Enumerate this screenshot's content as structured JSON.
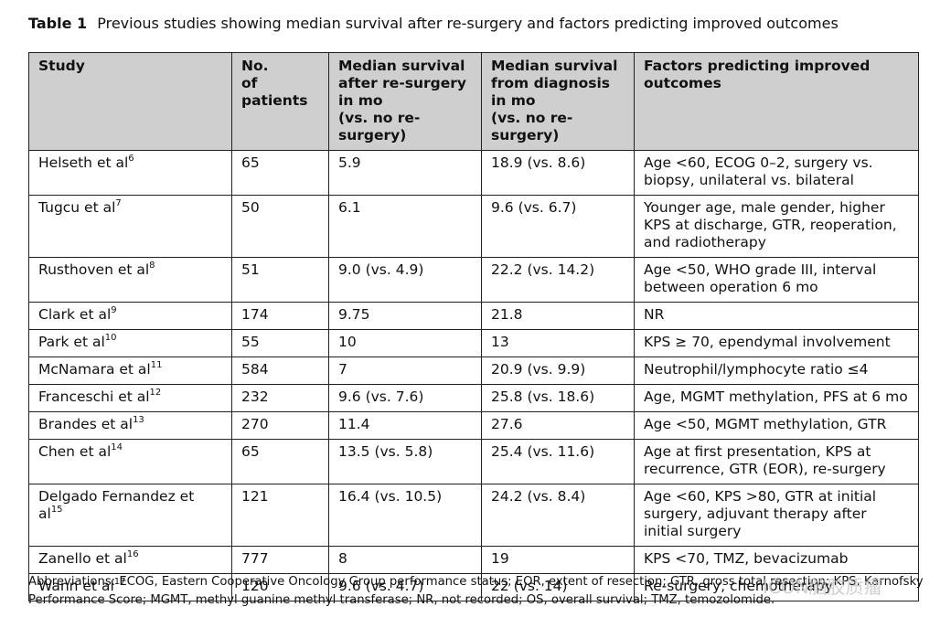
{
  "caption": {
    "label": "Table 1",
    "text": "Previous studies showing median survival after re-surgery and factors predicting improved outcomes"
  },
  "table": {
    "headers": [
      "Study",
      "No.\nof patients",
      "Median survival\nafter re-surgery\nin mo\n(vs. no re-surgery)",
      "Median survival\nfrom diagnosis\nin mo\n(vs. no re-surgery)",
      "Factors predicting improved\noutcomes"
    ],
    "rows": [
      {
        "study": "Helseth et al",
        "ref": "6",
        "patients": "65",
        "after": "5.9",
        "diagnosis": "18.9 (vs. 8.6)",
        "factors": "Age <60, ECOG 0–2, surgery vs. biopsy, unilateral vs. bilateral"
      },
      {
        "study": "Tugcu et al",
        "ref": "7",
        "patients": "50",
        "after": "6.1",
        "diagnosis": "9.6 (vs. 6.7)",
        "factors": "Younger age, male gender, higher KPS at discharge, GTR, reoperation, and radiotherapy"
      },
      {
        "study": "Rusthoven et al",
        "ref": "8",
        "patients": "51",
        "after": "9.0 (vs. 4.9)",
        "diagnosis": "22.2 (vs. 14.2)",
        "factors": "Age <50, WHO grade III, interval between operation 6 mo"
      },
      {
        "study": "Clark et al",
        "ref": "9",
        "patients": "174",
        "after": "9.75",
        "diagnosis": "21.8",
        "factors": "NR"
      },
      {
        "study": "Park et al",
        "ref": "10",
        "patients": "55",
        "after": "10",
        "diagnosis": "13",
        "factors": "KPS ≥ 70, ependymal involvement"
      },
      {
        "study": "McNamara et al",
        "ref": "11",
        "patients": "584",
        "after": "7",
        "diagnosis": "20.9 (vs. 9.9)",
        "factors": "Neutrophil/lymphocyte ratio ≤4"
      },
      {
        "study": "Franceschi et al",
        "ref": "12",
        "patients": "232",
        "after": "9.6 (vs. 7.6)",
        "diagnosis": "25.8 (vs. 18.6)",
        "factors": "Age, MGMT methylation, PFS at 6 mo"
      },
      {
        "study": "Brandes et al",
        "ref": "13",
        "patients": "270",
        "after": "11.4",
        "diagnosis": "27.6",
        "factors": "Age <50, MGMT methylation, GTR"
      },
      {
        "study": "Chen et al",
        "ref": "14",
        "patients": "65",
        "after": "13.5 (vs. 5.8)",
        "diagnosis": "25.4 (vs. 11.6)",
        "factors": "Age at first presentation, KPS at recurrence, GTR (EOR), re-surgery"
      },
      {
        "study": "Delgado Fernandez et al",
        "ref": "15",
        "patients": "121",
        "after": "16.4 (vs. 10.5)",
        "diagnosis": "24.2 (vs. 8.4)",
        "factors": "Age <60, KPS >80, GTR at initial surgery, adjuvant therapy after initial surgery"
      },
      {
        "study": "Zanello et al",
        "ref": "16",
        "patients": "777",
        "after": "8",
        "diagnosis": "19",
        "factors": "KPS <70, TMZ, bevacizumab"
      },
      {
        "study": "Wann et al",
        "ref": "17",
        "patients": "120",
        "after": "9.6 (vs. 4.7)",
        "diagnosis": "22 (vs. 14)",
        "factors": "Re-surgery, chemotherapy"
      }
    ]
  },
  "footnote": "Abbreviations: ECOG, Eastern Cooperative Oncology Group performance status; EOR, extent of resection; GTR, gross total resection; KPS, Karnofsky Performance Score; MGMT, methyl guanine methyl transferase; NR, not recorded; OS, overall survival; TMZ, temozolomide.",
  "watermark": "ICON脑胶质瘤"
}
